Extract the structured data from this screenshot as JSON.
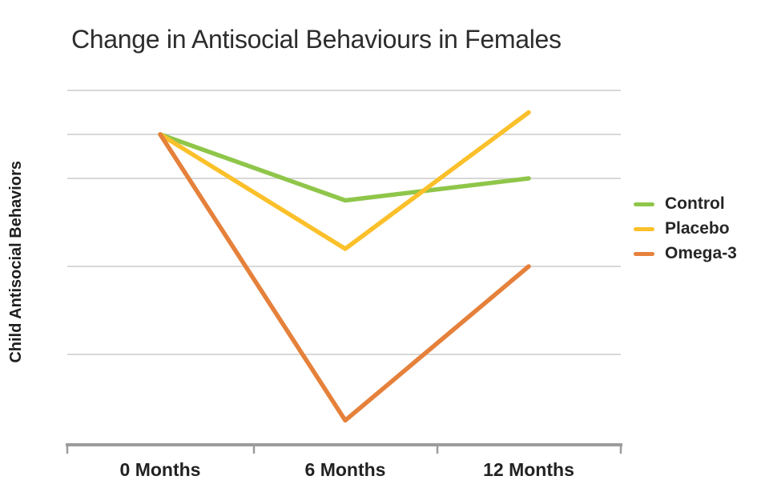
{
  "chart_data": {
    "type": "line",
    "title": "Change in Antisocial Behaviours in Females",
    "ylabel": "Child Antisocial Behaviors",
    "xlabel": "",
    "categories": [
      "0 Months",
      "6 Months",
      "12 Months"
    ],
    "series": [
      {
        "name": "Control",
        "color": "#8FC64A",
        "values": [
          7.0,
          5.5,
          6.0
        ]
      },
      {
        "name": "Placebo",
        "color": "#FBC02A",
        "values": [
          7.0,
          4.4,
          7.5
        ]
      },
      {
        "name": "Omega-3",
        "color": "#E5813B",
        "values": [
          7.0,
          0.5,
          4.0
        ]
      }
    ],
    "ylim": [
      0,
      8
    ],
    "y_tick_labels_visible": false,
    "gridline_values": [
      8,
      7,
      6,
      4,
      2
    ],
    "grid": true,
    "legend_position": "right"
  },
  "colors": {
    "background": "#FFFFFF",
    "gridline": "#D8D8D8",
    "axis": "#9C9C9C",
    "title_text": "#2D2D2D",
    "label_text": "#222222"
  }
}
